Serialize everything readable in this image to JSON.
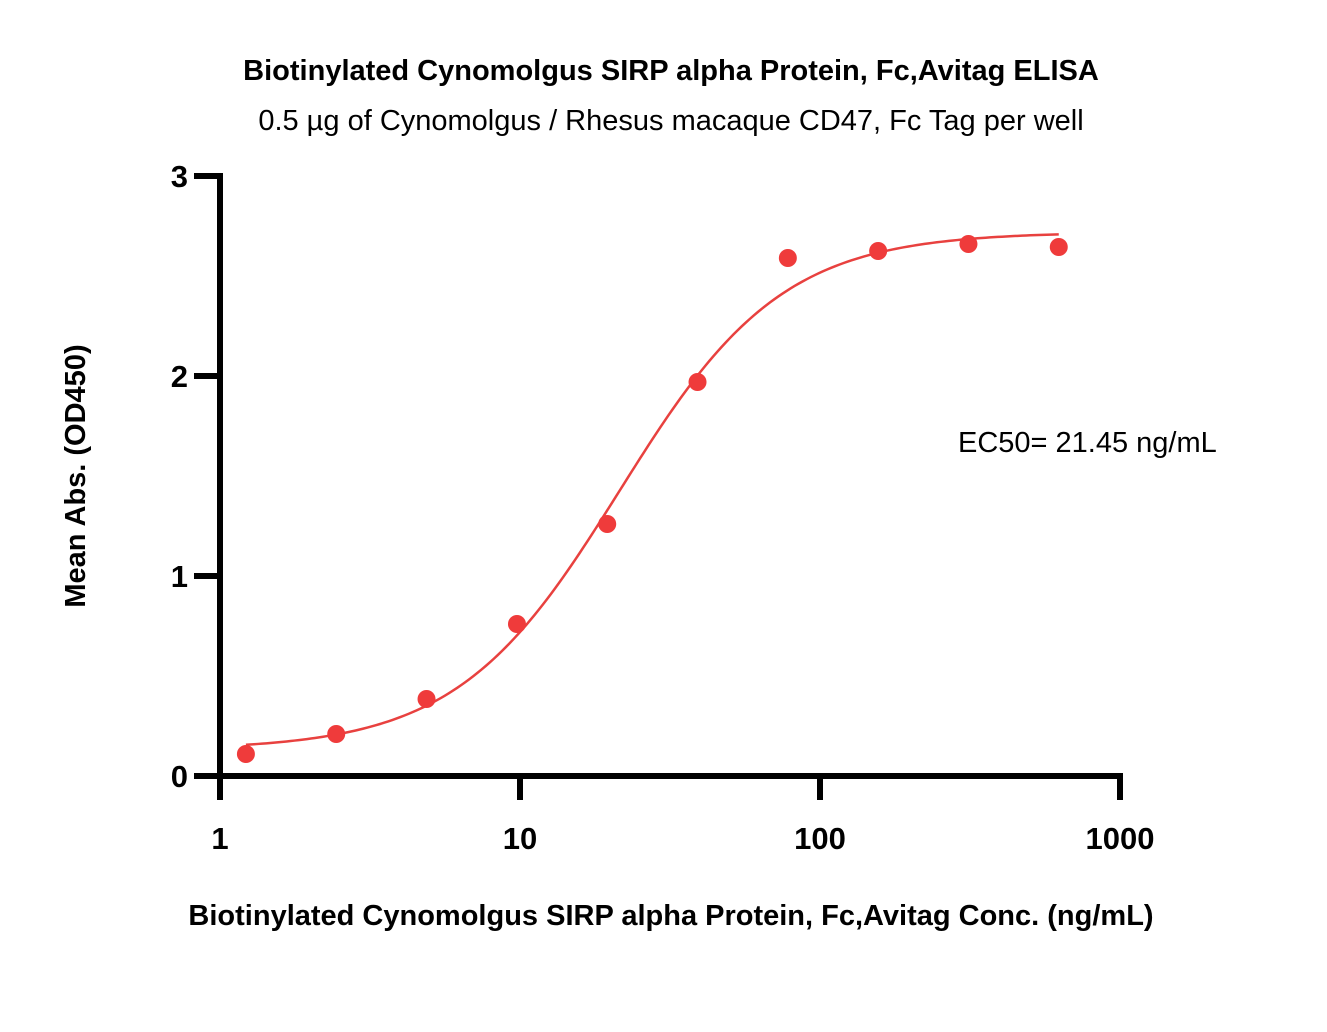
{
  "chart_data": {
    "type": "scatter",
    "title": "Biotinylated Cynomolgus SIRP alpha Protein, Fc,Avitag ELISA",
    "subtitle": "0.5 µg of Cynomolgus / Rhesus macaque CD47, Fc Tag per well",
    "xlabel": "Biotinylated Cynomolgus SIRP alpha Protein, Fc,Avitag Conc. (ng/mL)",
    "ylabel": "Mean Abs. (OD450)",
    "xscale": "log",
    "xlim": [
      1,
      1000
    ],
    "ylim": [
      0,
      3
    ],
    "xticks": [
      1,
      10,
      100,
      1000
    ],
    "xtick_labels": [
      "1",
      "10",
      "100",
      "1000"
    ],
    "yticks": [
      0,
      1,
      2,
      3
    ],
    "ytick_labels": [
      "0",
      "1",
      "2",
      "3"
    ],
    "grid": false,
    "series": [
      {
        "name": "Biotinylated Cynomolgus SIRP alpha Protein, Fc,Avitag",
        "color": "#ef3b3b",
        "x": [
          1.22,
          2.44,
          4.88,
          9.77,
          19.53,
          39.06,
          78.13,
          156.25,
          312.5,
          625
        ],
        "y": [
          0.11,
          0.21,
          0.385,
          0.76,
          1.26,
          1.97,
          2.59,
          2.625,
          2.66,
          2.645
        ]
      }
    ],
    "fit": {
      "model": "4PL",
      "bottom": 0.13,
      "top": 2.72,
      "ec50": 21.45,
      "hill": 1.6,
      "x_range": [
        1.22,
        625
      ],
      "color": "#e8413f"
    },
    "annotations": [
      {
        "text": "EC50= 21.45 ng/mL"
      }
    ]
  }
}
